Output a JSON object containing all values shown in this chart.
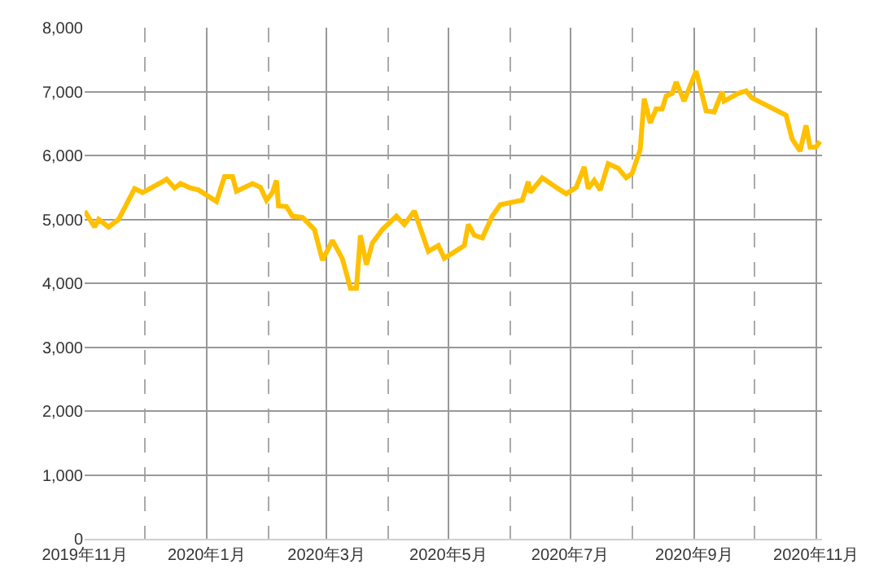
{
  "chart_data": {
    "type": "line",
    "color": "#ffc000",
    "grid": true,
    "marker": "none",
    "line_style": "solid",
    "x": [
      "2019-11-01",
      "2019-11-06",
      "2019-11-08",
      "2019-11-13",
      "2019-11-18",
      "2019-11-26",
      "2019-11-30",
      "2019-12-10",
      "2019-12-12",
      "2019-12-16",
      "2019-12-19",
      "2019-12-24",
      "2019-12-28",
      "2020-01-06",
      "2020-01-10",
      "2020-01-14",
      "2020-01-16",
      "2020-01-24",
      "2020-01-28",
      "2020-01-31",
      "2020-02-03",
      "2020-02-05",
      "2020-02-06",
      "2020-02-10",
      "2020-02-13",
      "2020-02-18",
      "2020-02-24",
      "2020-02-28",
      "2020-03-04",
      "2020-03-09",
      "2020-03-13",
      "2020-03-16",
      "2020-03-18",
      "2020-03-21",
      "2020-03-24",
      "2020-03-29",
      "2020-04-05",
      "2020-04-09",
      "2020-04-14",
      "2020-04-21",
      "2020-04-26",
      "2020-04-29",
      "2020-05-09",
      "2020-05-11",
      "2020-05-14",
      "2020-05-18",
      "2020-05-23",
      "2020-05-27",
      "2020-06-07",
      "2020-06-10",
      "2020-06-11",
      "2020-06-17",
      "2020-06-24",
      "2020-06-29",
      "2020-07-04",
      "2020-07-08",
      "2020-07-10",
      "2020-07-13",
      "2020-07-16",
      "2020-07-20",
      "2020-07-25",
      "2020-07-29",
      "2020-08-01",
      "2020-08-05",
      "2020-08-07",
      "2020-08-10",
      "2020-08-13",
      "2020-08-16",
      "2020-08-18",
      "2020-08-21",
      "2020-08-23",
      "2020-08-27",
      "2020-08-29",
      "2020-09-02",
      "2020-09-07",
      "2020-09-11",
      "2020-09-15",
      "2020-09-16",
      "2020-09-23",
      "2020-09-27",
      "2020-09-30",
      "2020-10-17",
      "2020-10-20",
      "2020-10-24",
      "2020-10-27",
      "2020-10-29",
      "2020-11-01",
      "2020-11-03"
    ],
    "values": [
      5130,
      4880,
      5000,
      4880,
      5000,
      5480,
      5420,
      5590,
      5630,
      5490,
      5560,
      5490,
      5460,
      5280,
      5670,
      5670,
      5440,
      5560,
      5500,
      5300,
      5420,
      5610,
      5210,
      5200,
      5050,
      5030,
      4840,
      4360,
      4670,
      4380,
      3920,
      3920,
      4750,
      4290,
      4630,
      4840,
      5050,
      4920,
      5130,
      4500,
      4590,
      4390,
      4590,
      4920,
      4750,
      4710,
      5050,
      5230,
      5300,
      5590,
      5420,
      5650,
      5500,
      5400,
      5500,
      5820,
      5480,
      5610,
      5460,
      5870,
      5800,
      5650,
      5720,
      6090,
      6890,
      6510,
      6730,
      6730,
      6930,
      6970,
      7150,
      6850,
      7010,
      7320,
      6700,
      6680,
      7000,
      6850,
      6970,
      7010,
      6900,
      6630,
      6260,
      6070,
      6470,
      6130,
      6130,
      6220
    ],
    "xlim": [
      "2019-11-01",
      "2020-11-04"
    ],
    "xticks": [
      {
        "value": "2019-11-01",
        "label": "2019年11月"
      },
      {
        "value": "2019-12-01",
        "label": null
      },
      {
        "value": "2020-01-01",
        "label": "2020年1月"
      },
      {
        "value": "2020-02-01",
        "label": null
      },
      {
        "value": "2020-03-01",
        "label": "2020年3月"
      },
      {
        "value": "2020-04-01",
        "label": null
      },
      {
        "value": "2020-05-01",
        "label": "2020年5月"
      },
      {
        "value": "2020-06-01",
        "label": null
      },
      {
        "value": "2020-07-01",
        "label": "2020年7月"
      },
      {
        "value": "2020-08-01",
        "label": null
      },
      {
        "value": "2020-09-01",
        "label": "2020年9月"
      },
      {
        "value": "2020-10-01",
        "label": null
      },
      {
        "value": "2020-11-01",
        "label": "2020年11月"
      }
    ],
    "ylim": [
      0,
      8000
    ],
    "yticks": [
      {
        "value": 0,
        "label": "0"
      },
      {
        "value": 1000,
        "label": "1,000"
      },
      {
        "value": 2000,
        "label": "2,000"
      },
      {
        "value": 3000,
        "label": "3,000"
      },
      {
        "value": 4000,
        "label": "4,000"
      },
      {
        "value": 5000,
        "label": "5,000"
      },
      {
        "value": 6000,
        "label": "6,000"
      },
      {
        "value": 7000,
        "label": "7,000"
      },
      {
        "value": 8000,
        "label": "8,000"
      }
    ]
  }
}
